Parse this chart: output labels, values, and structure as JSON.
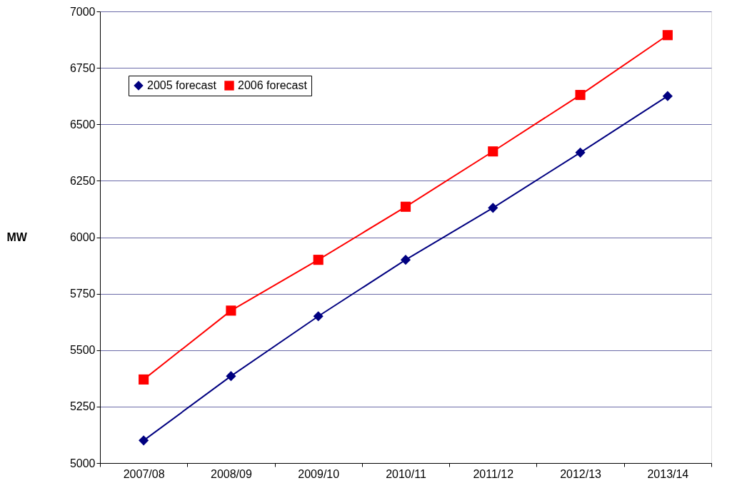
{
  "chart_data": {
    "type": "line",
    "ylabel": "MW",
    "categories": [
      "2007/08",
      "2008/09",
      "2009/10",
      "2010/11",
      "2011/12",
      "2012/13",
      "2013/14"
    ],
    "series": [
      {
        "name": "2005 forecast",
        "color": "#000080",
        "marker": "diamond",
        "values": [
          5100,
          5385,
          5650,
          5900,
          6130,
          6375,
          6625
        ]
      },
      {
        "name": "2006 forecast",
        "color": "#ff0000",
        "marker": "square",
        "values": [
          5370,
          5675,
          5900,
          6135,
          6380,
          6630,
          6895
        ]
      }
    ],
    "ylim": [
      5000,
      7000
    ],
    "yticks": [
      5000,
      5250,
      5500,
      5750,
      6000,
      6250,
      6500,
      6750,
      7000
    ],
    "grid": "y",
    "legend": "top left",
    "line_style": "solid"
  }
}
